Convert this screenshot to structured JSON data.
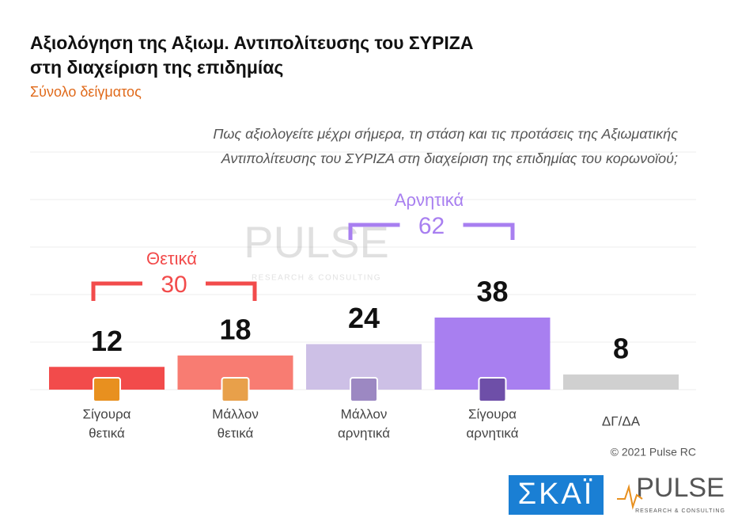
{
  "chart_data": {
    "type": "bar",
    "title": [
      "Αξιολόγηση της Αξιωμ. Αντιπολίτευσης του ΣΥΡΙΖΑ",
      "στη διαχείριση της επιδημίας"
    ],
    "subtitle": "Σύνολο δείγματος",
    "question": [
      "Πως αξιολογείτε  μέχρι σήμερα, τη στάση και τις προτάσεις της Αξιωματικής",
      "Αντιπολίτευσης του ΣΥΡΙΖΑ στη διαχείριση της επιδημίας του κορωνοϊού;"
    ],
    "categories": [
      [
        "Σίγουρα",
        "θετικά"
      ],
      [
        "Μάλλον",
        "θετικά"
      ],
      [
        "Μάλλον",
        "αρνητικά"
      ],
      [
        "Σίγουρα",
        "αρνητικά"
      ],
      [
        "ΔΓ/ΔΑ"
      ]
    ],
    "values": [
      12,
      18,
      24,
      38,
      8
    ],
    "colors": [
      "#f24b4b",
      "#f87c72",
      "#cdc0e6",
      "#a87ff0",
      "#d0d0d0"
    ],
    "groups": [
      {
        "label": "Θετικά",
        "total": 30,
        "color": "#f24b4b"
      },
      {
        "label": "Αρνητικά",
        "total": 62,
        "color": "#a87ff0"
      }
    ],
    "copyright": "© 2021 Pulse RC",
    "logos": {
      "skai": "ΣΚΑΪ",
      "pulse": "PULSE",
      "pulse_sub": "RESEARCH & CONSULTING"
    }
  }
}
